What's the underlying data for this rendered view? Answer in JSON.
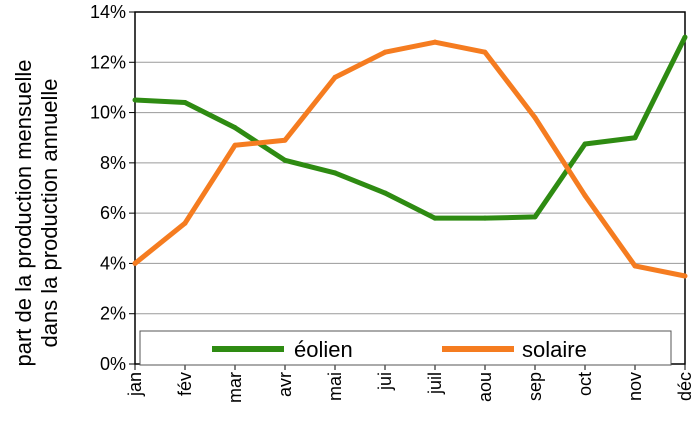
{
  "chart_data": {
    "type": "line",
    "categories": [
      "jan",
      "fév",
      "mar",
      "avr",
      "mai",
      "jui",
      "juil",
      "aou",
      "sep",
      "oct",
      "nov",
      "déc"
    ],
    "series": [
      {
        "name": "éolien",
        "color": "#2e8b12",
        "values": [
          10.5,
          10.4,
          9.4,
          8.1,
          7.6,
          6.8,
          5.8,
          5.8,
          5.85,
          8.75,
          9.0,
          13.0
        ]
      },
      {
        "name": "solaire",
        "color": "#f57c20",
        "values": [
          4.0,
          5.6,
          8.7,
          8.9,
          11.4,
          12.4,
          12.8,
          12.4,
          9.8,
          6.7,
          3.9,
          3.5
        ]
      }
    ],
    "title": "",
    "xlabel": "",
    "ylabel_line1": "part de la production mensuelle",
    "ylabel_line2": "dans la production annuelle",
    "ylim": [
      0,
      14
    ],
    "yticks": [
      "0%",
      "2%",
      "4%",
      "6%",
      "8%",
      "10%",
      "12%",
      "14%"
    ],
    "grid": "horizontal",
    "legend_position": "bottom-inside"
  }
}
